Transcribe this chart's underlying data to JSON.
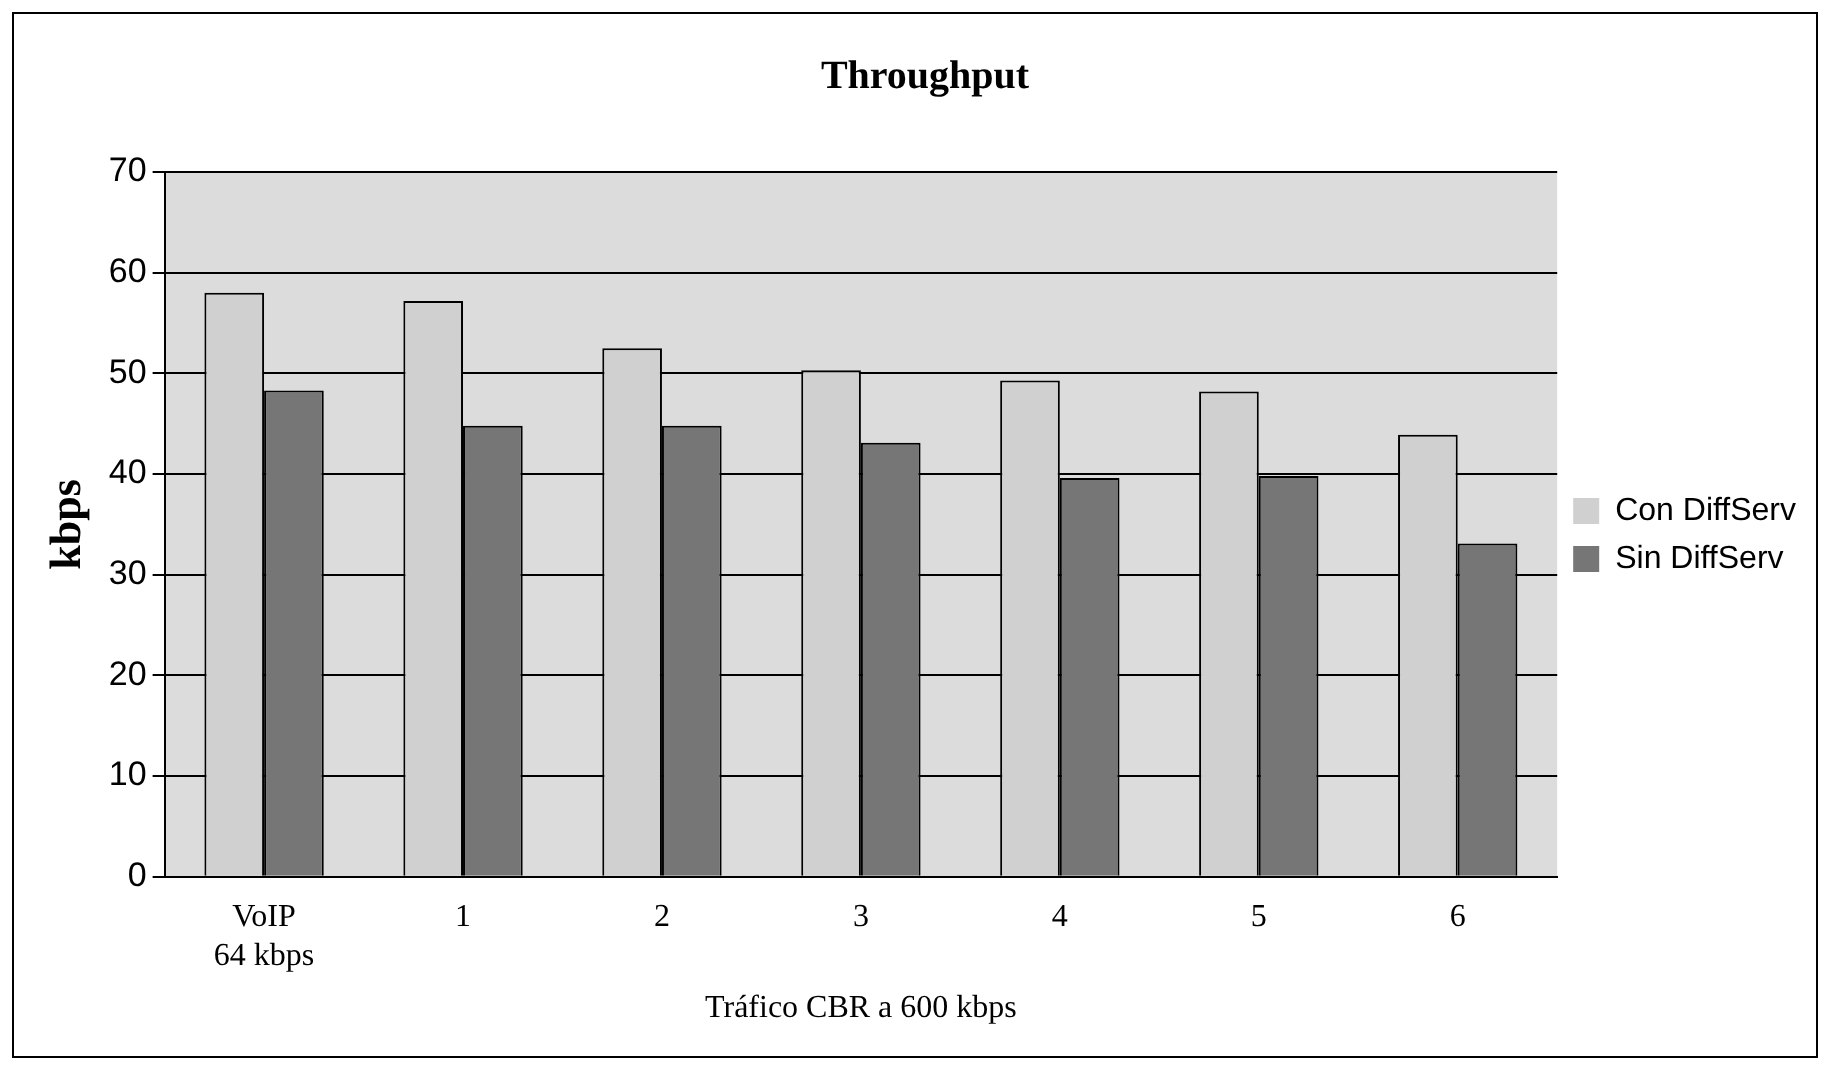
{
  "chart_data": {
    "type": "bar",
    "title": "Throughput",
    "xlabel": "Tráfico CBR a 600 kbps",
    "ylabel": "kbps",
    "categories": [
      "VoIP\n64 kbps",
      "1",
      "2",
      "3",
      "4",
      "5",
      "6"
    ],
    "series": [
      {
        "name": "Con DiffServ",
        "color": "#d0d0d0",
        "values": [
          58.0,
          57.2,
          52.5,
          50.3,
          49.3,
          48.2,
          43.9
        ]
      },
      {
        "name": "Sin DiffServ",
        "color": "#767676",
        "values": [
          48.3,
          44.8,
          44.8,
          43.1,
          39.6,
          39.8,
          33.1
        ]
      }
    ],
    "ylim": [
      0,
      70
    ],
    "yticks": [
      0,
      10,
      20,
      30,
      40,
      50,
      60,
      70
    ],
    "grid": "y",
    "legend": "right"
  }
}
